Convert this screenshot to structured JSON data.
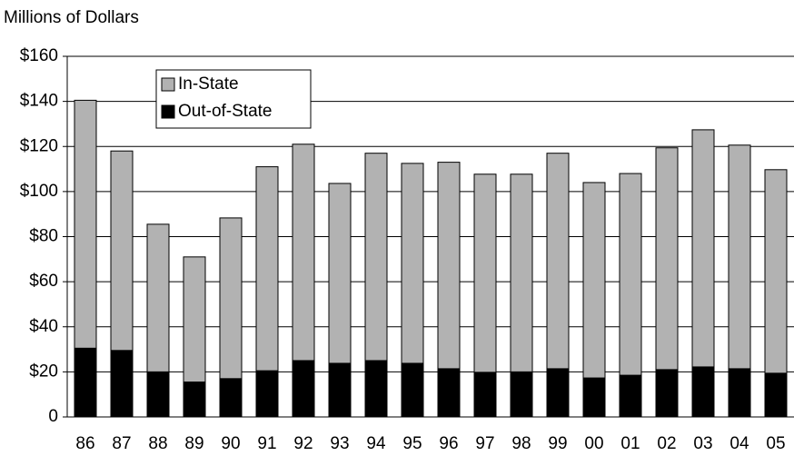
{
  "chart_data": {
    "type": "stacked_bar",
    "title": "Millions of Dollars",
    "categories": [
      "86",
      "87",
      "88",
      "89",
      "90",
      "91",
      "92",
      "93",
      "94",
      "95",
      "96",
      "97",
      "98",
      "99",
      "00",
      "01",
      "02",
      "03",
      "04",
      "05"
    ],
    "series": [
      {
        "name": "Out-of-State",
        "color": "#000000",
        "values": [
          30.5,
          29.5,
          20,
          15.5,
          17,
          20.5,
          25,
          23.8,
          25,
          23.8,
          21.4,
          19.8,
          20,
          21.4,
          17.3,
          18.5,
          21,
          22.2,
          21.4,
          19.4
        ]
      },
      {
        "name": "In-State",
        "color": "#b2b2b2",
        "values": [
          110,
          88.5,
          65.5,
          55.5,
          71.3,
          90.5,
          96,
          79.8,
          92,
          88.7,
          91.6,
          87.9,
          87.7,
          95.6,
          86.7,
          89.5,
          98.4,
          105.2,
          99.2,
          90.3
        ]
      }
    ],
    "ylim": [
      0,
      160
    ],
    "yticks": [
      0,
      {
        "value": 20,
        "label": "$20"
      },
      {
        "value": 40,
        "label": "$40"
      },
      {
        "value": 60,
        "label": "$60"
      },
      {
        "value": 80,
        "label": "$80"
      },
      {
        "value": 100,
        "label": "$100"
      },
      {
        "value": 120,
        "label": "$120"
      },
      {
        "value": 140,
        "label": "$140"
      },
      {
        "value": 160,
        "label": "$160"
      }
    ],
    "grid": true,
    "legend": "upper-left"
  }
}
